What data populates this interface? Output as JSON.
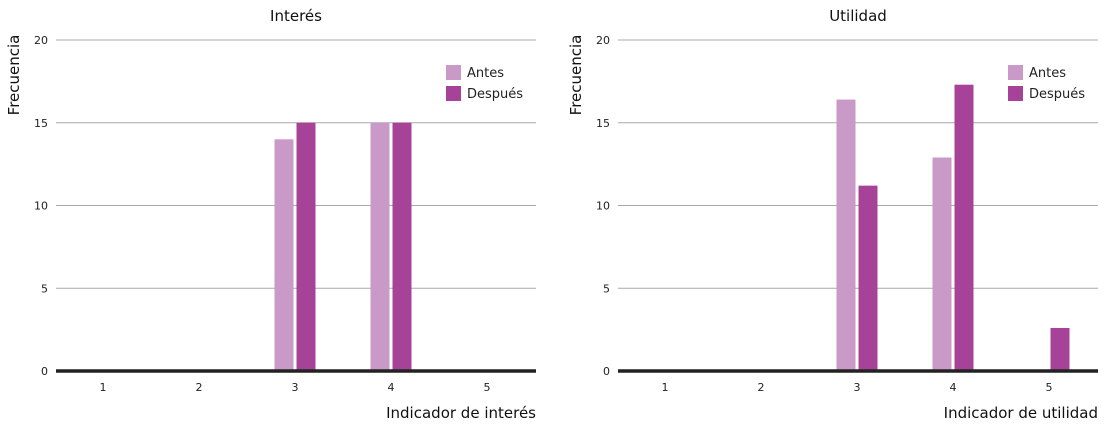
{
  "chart_data": [
    {
      "type": "bar",
      "title": "Interés",
      "xlabel": "Indicador de interés",
      "ylabel": "Frecuencia",
      "categories": [
        "1",
        "2",
        "3",
        "4",
        "5"
      ],
      "ylim": [
        0,
        20
      ],
      "yticks": [
        0,
        5,
        10,
        15,
        20
      ],
      "grid": true,
      "legend_position": "top-right",
      "series": [
        {
          "name": "Antes",
          "color": "#c99ac8",
          "values": [
            0,
            0,
            14,
            15,
            0
          ]
        },
        {
          "name": "Después",
          "color": "#a64399",
          "values": [
            0,
            0,
            15,
            15,
            0
          ]
        }
      ]
    },
    {
      "type": "bar",
      "title": "Utilidad",
      "xlabel": "Indicador de utilidad",
      "ylabel": "Frecuencia",
      "categories": [
        "1",
        "2",
        "3",
        "4",
        "5"
      ],
      "ylim": [
        0,
        20
      ],
      "yticks": [
        0,
        5,
        10,
        15,
        20
      ],
      "grid": true,
      "legend_position": "top-right",
      "series": [
        {
          "name": "Antes",
          "color": "#c99ac8",
          "values": [
            0,
            0,
            16.4,
            12.9,
            0
          ]
        },
        {
          "name": "Después",
          "color": "#a64399",
          "values": [
            0,
            0,
            11.2,
            17.3,
            2.6
          ]
        }
      ]
    }
  ]
}
